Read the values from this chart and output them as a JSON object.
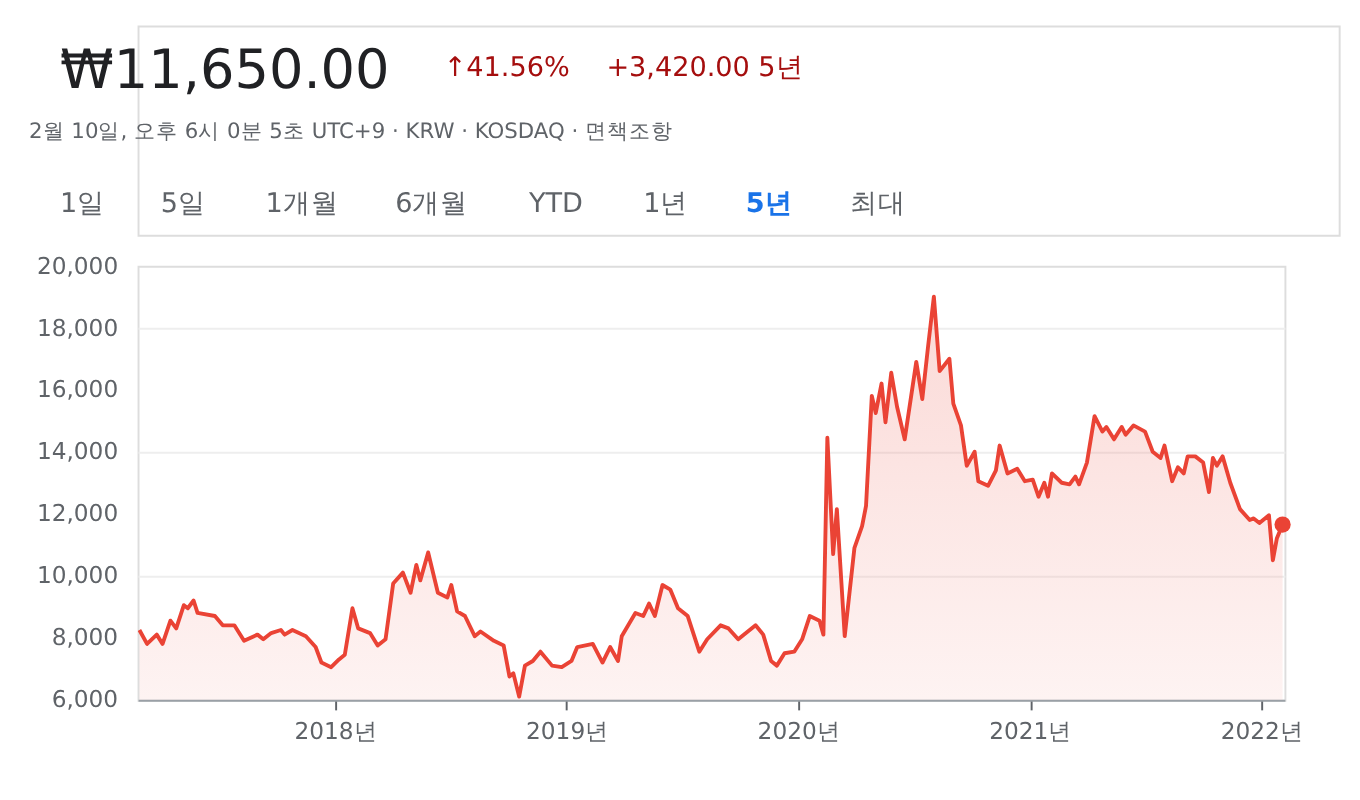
{
  "chart_data": {
    "type": "area",
    "title": "₩11,650.00",
    "annotations": [
      "↑41.56%",
      "+3,420.00 5년",
      "2월 10일, 오후 6시 0분 5초 UTC+9 · KRW · KOSDAQ · 면책조항",
      "1일",
      "5일",
      "1개월",
      "6개월",
      "YTD",
      "1년",
      "5년",
      "최대"
    ],
    "x": [
      2017.155,
      2017.188,
      2017.23,
      2017.255,
      2017.289,
      2017.314,
      2017.347,
      2017.364,
      2017.389,
      2017.406,
      2017.481,
      2017.515,
      2017.565,
      2017.607,
      2017.665,
      2017.69,
      2017.724,
      2017.766,
      2017.782,
      2017.816,
      2017.874,
      2017.916,
      2017.941,
      2017.983,
      2018.017,
      2018.042,
      2018.075,
      2018.1,
      2018.151,
      2018.184,
      2018.218,
      2018.251,
      2018.293,
      2018.326,
      2018.351,
      2018.368,
      2018.402,
      2018.444,
      2018.485,
      2018.502,
      2018.527,
      2018.561,
      2018.603,
      2018.628,
      2018.686,
      2018.728,
      2018.753,
      2018.77,
      2018.795,
      2018.82,
      2018.854,
      2018.887,
      2018.937,
      2018.979,
      2019.021,
      2019.046,
      2019.113,
      2019.155,
      2019.188,
      2019.222,
      2019.238,
      2019.297,
      2019.331,
      2019.356,
      2019.381,
      2019.414,
      2019.448,
      2019.481,
      2019.523,
      2019.573,
      2019.607,
      2019.665,
      2019.699,
      2019.741,
      2019.816,
      2019.849,
      2019.883,
      2019.908,
      2019.941,
      2019.983,
      2020.017,
      2020.05,
      2020.092,
      2020.109,
      2020.126,
      2020.151,
      2020.167,
      2020.201,
      2020.243,
      2020.276,
      2020.293,
      2020.318,
      2020.335,
      2020.36,
      2020.377,
      2020.402,
      2020.427,
      2020.46,
      2020.51,
      2020.536,
      2020.561,
      2020.586,
      2020.611,
      2020.653,
      2020.67,
      2020.703,
      2020.728,
      2020.762,
      2020.778,
      2020.82,
      2020.854,
      2020.87,
      2020.904,
      2020.946,
      2020.979,
      2021.013,
      2021.038,
      2021.063,
      2021.079,
      2021.096,
      2021.138,
      2021.172,
      2021.197,
      2021.213,
      2021.247,
      2021.28,
      2021.314,
      2021.331,
      2021.364,
      2021.397,
      2021.414,
      2021.448,
      2021.498,
      2021.531,
      2021.565,
      2021.582,
      2021.615,
      2021.64,
      2021.665,
      2021.682,
      2021.715,
      2021.749,
      2021.774,
      2021.791,
      2021.808,
      2021.833,
      2021.866,
      2021.908,
      2021.95,
      2021.967,
      2021.992,
      2022.033,
      2022.05,
      2022.067,
      2022.092
    ],
    "series": [
      {
        "color": "#ea4335",
        "values": [
          8250,
          7800,
          8100,
          7800,
          8550,
          8300,
          9050,
          8950,
          9200,
          8800,
          8700,
          8400,
          8400,
          7900,
          8100,
          7950,
          8150,
          8250,
          8100,
          8250,
          8050,
          7700,
          7200,
          7050,
          7300,
          7450,
          8950,
          8300,
          8150,
          7750,
          7950,
          9750,
          10100,
          9450,
          10350,
          9850,
          10750,
          9450,
          9300,
          9700,
          8850,
          8700,
          8050,
          8200,
          7900,
          7750,
          6750,
          6850,
          6100,
          7100,
          7250,
          7550,
          7100,
          7050,
          7250,
          7700,
          7800,
          7200,
          7700,
          7250,
          8050,
          8800,
          8700,
          9100,
          8700,
          9700,
          9550,
          8950,
          8700,
          7550,
          7950,
          8400,
          8300,
          7950,
          8400,
          8100,
          7250,
          7100,
          7500,
          7550,
          7950,
          8700,
          8550,
          8100,
          14450,
          10700,
          12150,
          8050,
          10900,
          11600,
          12250,
          15800,
          15250,
          16200,
          14950,
          16550,
          15450,
          14400,
          16900,
          15700,
          17400,
          19000,
          16600,
          17000,
          15550,
          14850,
          13550,
          14000,
          13050,
          12900,
          13400,
          14200,
          13300,
          13450,
          13050,
          13100,
          12550,
          13000,
          12550,
          13300,
          13000,
          12950,
          13200,
          12950,
          13650,
          15150,
          14650,
          14800,
          14400,
          14800,
          14550,
          14850,
          14650,
          14000,
          13800,
          14200,
          13050,
          13500,
          13300,
          13850,
          13850,
          13650,
          12700,
          13800,
          13550,
          13850,
          13000,
          12150,
          11800,
          11850,
          11700,
          11950,
          10500,
          11200,
          11650
        ]
      }
    ],
    "xlim": [
      2017.147,
      2022.1
    ],
    "xticks": [
      {
        "value": 2018,
        "label": "2018년"
      },
      {
        "value": 2019,
        "label": "2019년"
      },
      {
        "value": 2020,
        "label": "2020년"
      },
      {
        "value": 2021,
        "label": "2021년"
      },
      {
        "value": 2022,
        "label": "2022년"
      }
    ],
    "ylim": [
      6000,
      20000
    ],
    "yticks": [
      {
        "value": 6000,
        "label": "6,000"
      },
      {
        "value": 8000,
        "label": "8,000"
      },
      {
        "value": 10000,
        "label": "10,000"
      },
      {
        "value": 12000,
        "label": "12,000"
      },
      {
        "value": 14000,
        "label": "14,000"
      },
      {
        "value": 16000,
        "label": "16,000"
      },
      {
        "value": 18000,
        "label": "18,000"
      },
      {
        "value": 20000,
        "label": "20,000"
      }
    ],
    "grid": "y"
  }
}
